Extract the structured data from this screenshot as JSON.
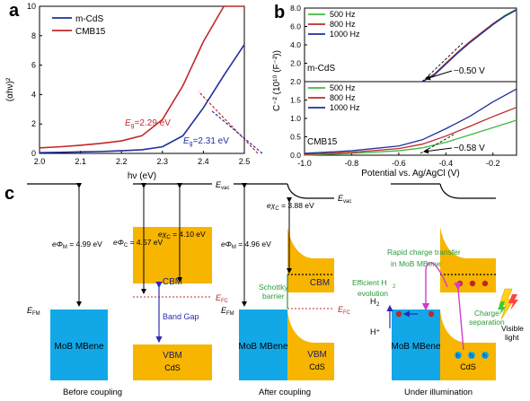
{
  "panel_a": {
    "label": "a",
    "ylabel": "(αhν)²",
    "xlabel": "hν (eV)",
    "legend": [
      "m-CdS",
      "CMB15"
    ],
    "anno_cmb": "E",
    "anno_cmb_sub": "g",
    "anno_cmb_val": "=2.29 eV",
    "anno_cds": "E",
    "anno_cds_sub": "g",
    "anno_cds_val": "=2.31 eV",
    "colors": {
      "m-CdS": "#1f2f9a",
      "CMB15": "#c0282a"
    }
  },
  "panel_b": {
    "label": "b",
    "ylabel": "C⁻² (10¹⁰ (F⁻²))",
    "xlabel": "Potential vs. Ag/AgCl (V)",
    "legend": [
      "500 Hz",
      "800 Hz",
      "1000 Hz"
    ],
    "top_sample": "m-CdS",
    "bottom_sample": "CMB15",
    "top_fb": "−0.50 V",
    "bottom_fb": "−0.58 V",
    "colors": {
      "500 Hz": "#3dbb3d",
      "800 Hz": "#c0282a",
      "1000 Hz": "#1f2f9a"
    }
  },
  "panel_c": {
    "label": "c",
    "before": {
      "evac": "E",
      "evac_sub": "vac",
      "phi_m": "eΦ",
      "phi_m_sub": "M",
      "phi_m_val": " = 4.99 eV",
      "phi_c": "eΦ",
      "phi_c_sub": "C",
      "phi_c_val": " = 4.57 eV",
      "chi_c": "eχ",
      "chi_c_sub": "C",
      "chi_c_val": " = 4.10 eV",
      "efm": "E",
      "efm_sub": "FM",
      "efc": "E",
      "efc_sub": "FC",
      "cbm": "CBM",
      "vbm": "VBM",
      "bandgap": "Band Gap",
      "metal": "MoB MBene",
      "semi": "CdS",
      "caption": "Before coupling"
    },
    "after": {
      "evac": "E",
      "evac_sub": "vac",
      "phi_m": "eΦ",
      "phi_m_sub": "M",
      "phi_m_val": " = 4.96 eV",
      "chi_c": "eχ",
      "chi_c_sub": "C",
      "chi_c_val": " = 3.88 eV",
      "efm": "E",
      "efm_sub": "FM",
      "efc": "E",
      "efc_sub": "FC",
      "schottky1": "Schottky",
      "schottky2": "barrier",
      "cbm": "CBM",
      "vbm": "VBM",
      "metal": "MoB MBene",
      "semi": "CdS",
      "caption": "After coupling"
    },
    "illum": {
      "rapid1": "Rapid charge transfer",
      "rapid2": "in MoB MBene",
      "h2_1": "Efficient H",
      "h2_2": "evolution",
      "h2": "H",
      "hplus": "H⁺",
      "charge1": "Charge",
      "charge2": "separation",
      "visible1": "Visible",
      "visible2": "light",
      "hole": "h",
      "metal": "MoB MBene",
      "semi": "CdS",
      "caption": "Under illumination"
    },
    "colors": {
      "metal": "#12a8e8",
      "semi": "#f7b500",
      "accent_blue": "#2b2bb5",
      "accent_red": "#c0282a",
      "accent_green": "#2a9a3a",
      "accent_magenta": "#d23bd2"
    }
  },
  "chart_data": [
    {
      "type": "line",
      "title": "",
      "xlabel": "hν (eV)",
      "ylabel": "(αhν)²",
      "xlim": [
        2.0,
        2.5
      ],
      "ylim": [
        0,
        10
      ],
      "xticks": [
        "2.0",
        "2.1",
        "2.2",
        "2.3",
        "2.4",
        "2.5"
      ],
      "yticks": [
        "0",
        "2",
        "4",
        "6",
        "8",
        "10"
      ],
      "legend_position": "top-left",
      "series": [
        {
          "name": "m-CdS",
          "x": [
            2.0,
            2.05,
            2.1,
            2.15,
            2.2,
            2.25,
            2.3,
            2.35,
            2.4,
            2.45,
            2.5
          ],
          "y": [
            0.05,
            0.07,
            0.1,
            0.13,
            0.18,
            0.25,
            0.45,
            1.2,
            3.1,
            5.3,
            7.4
          ]
        },
        {
          "name": "CMB15",
          "x": [
            2.0,
            2.05,
            2.1,
            2.15,
            2.2,
            2.25,
            2.3,
            2.35,
            2.4,
            2.45,
            2.5
          ],
          "y": [
            0.38,
            0.45,
            0.55,
            0.68,
            0.85,
            1.2,
            2.3,
            4.6,
            7.6,
            10.5,
            10.5
          ]
        }
      ],
      "annotations": [
        "Eg=2.29 eV",
        "Eg=2.31 eV"
      ]
    },
    {
      "type": "line",
      "title": "",
      "xlabel": "Potential vs. Ag/AgCl (V)",
      "ylabel": "C⁻² (10¹⁰ (F⁻²))",
      "xlim": [
        -1.0,
        -0.1
      ],
      "ylim": [
        0,
        8
      ],
      "xticks": [
        "-1.0",
        "-0.8",
        "-0.6",
        "-0.4",
        "-0.2"
      ],
      "yticks": [
        "0.0",
        "2.0",
        "4.0",
        "6.0",
        "8.0"
      ],
      "legend_position": "top-left",
      "sample": "m-CdS",
      "series": [
        {
          "name": "500 Hz",
          "x": [
            -0.5,
            -0.45,
            -0.4,
            -0.35,
            -0.3,
            -0.25,
            -0.2,
            -0.15,
            -0.1
          ],
          "y": [
            0.0,
            0.8,
            2.0,
            3.2,
            4.3,
            5.3,
            6.3,
            7.2,
            7.9
          ]
        },
        {
          "name": "800 Hz",
          "x": [
            -0.5,
            -0.45,
            -0.4,
            -0.35,
            -0.3,
            -0.25,
            -0.2,
            -0.15,
            -0.1
          ],
          "y": [
            0.0,
            0.8,
            2.0,
            3.2,
            4.3,
            5.3,
            6.3,
            7.1,
            7.8
          ]
        },
        {
          "name": "1000 Hz",
          "x": [
            -0.5,
            -0.45,
            -0.4,
            -0.35,
            -0.3,
            -0.25,
            -0.2,
            -0.15,
            -0.1
          ],
          "y": [
            0.0,
            0.7,
            1.9,
            3.1,
            4.2,
            5.2,
            6.2,
            7.1,
            7.8
          ]
        }
      ],
      "annotations": [
        "−0.50 V"
      ]
    },
    {
      "type": "line",
      "title": "",
      "xlabel": "Potential vs. Ag/AgCl (V)",
      "ylabel": "C⁻² (10¹⁰ (F⁻²))",
      "xlim": [
        -1.0,
        -0.1
      ],
      "ylim": [
        0,
        2
      ],
      "xticks": [
        "-1.0",
        "-0.8",
        "-0.6",
        "-0.4",
        "-0.2"
      ],
      "yticks": [
        "0.0",
        "0.5",
        "1.0",
        "1.5",
        "2.0"
      ],
      "legend_position": "top-left",
      "sample": "CMB15",
      "series": [
        {
          "name": "500 Hz",
          "x": [
            -1.0,
            -0.8,
            -0.6,
            -0.5,
            -0.4,
            -0.3,
            -0.2,
            -0.1
          ],
          "y": [
            0.0,
            0.05,
            0.12,
            0.2,
            0.35,
            0.55,
            0.75,
            0.95
          ]
        },
        {
          "name": "800 Hz",
          "x": [
            -1.0,
            -0.8,
            -0.6,
            -0.5,
            -0.4,
            -0.3,
            -0.2,
            -0.1
          ],
          "y": [
            0.02,
            0.08,
            0.18,
            0.3,
            0.52,
            0.78,
            1.05,
            1.3
          ]
        },
        {
          "name": "1000 Hz",
          "x": [
            -1.0,
            -0.8,
            -0.6,
            -0.5,
            -0.4,
            -0.3,
            -0.2,
            -0.1
          ],
          "y": [
            0.05,
            0.12,
            0.25,
            0.42,
            0.72,
            1.05,
            1.45,
            1.8
          ]
        }
      ],
      "annotations": [
        "−0.58 V"
      ]
    }
  ]
}
